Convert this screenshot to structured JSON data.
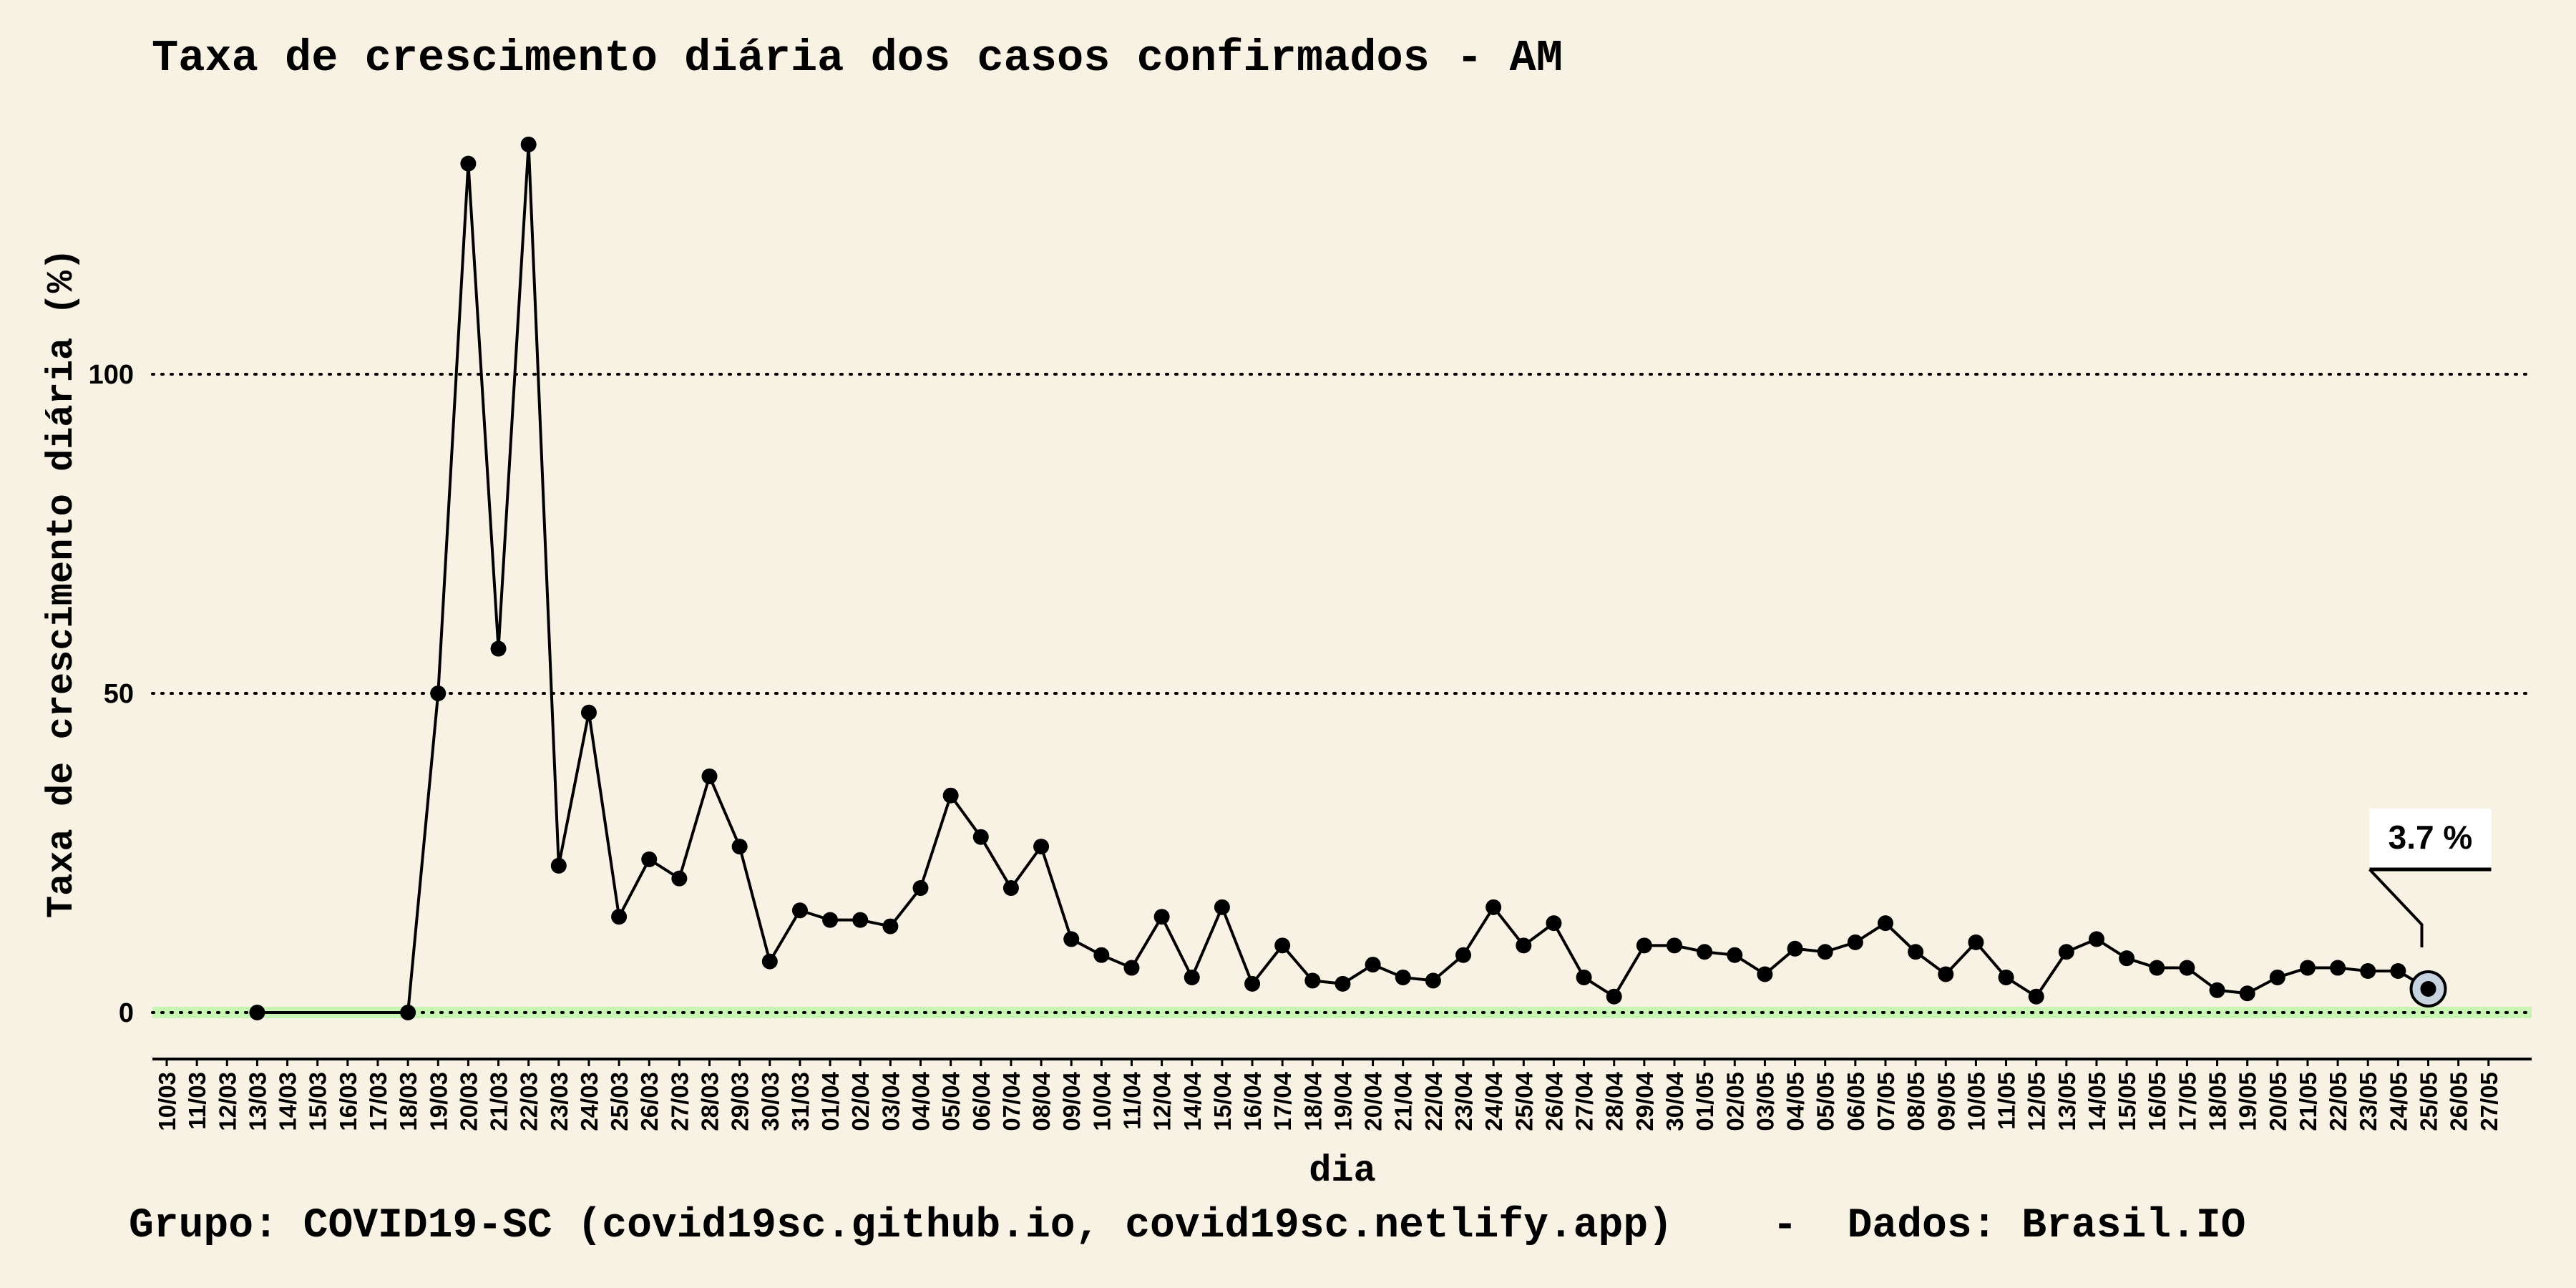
{
  "chart_data": {
    "type": "line",
    "title": "Taxa de crescimento diária dos casos confirmados - AM",
    "xlabel": "dia",
    "ylabel": "Taxa de crescimento diária (%)",
    "caption": "Grupo: COVID19-SC (covid19sc.github.io, covid19sc.netlify.app)    -  Dados: Brasil.IO",
    "x_axis_labels": [
      "10/03",
      "11/03",
      "12/03",
      "13/03",
      "14/03",
      "15/03",
      "16/03",
      "17/03",
      "18/03",
      "19/03",
      "20/03",
      "21/03",
      "22/03",
      "23/03",
      "24/03",
      "25/03",
      "26/03",
      "27/03",
      "28/03",
      "29/03",
      "30/03",
      "31/03",
      "01/04",
      "02/04",
      "03/04",
      "04/04",
      "05/04",
      "06/04",
      "07/04",
      "08/04",
      "09/04",
      "10/04",
      "11/04",
      "12/04",
      "14/04",
      "15/04",
      "16/04",
      "17/04",
      "18/04",
      "19/04",
      "20/04",
      "21/04",
      "22/04",
      "23/04",
      "24/04",
      "25/04",
      "26/04",
      "27/04",
      "28/04",
      "29/04",
      "30/04",
      "01/05",
      "02/05",
      "03/05",
      "04/05",
      "05/05",
      "06/05",
      "07/05",
      "08/05",
      "09/05",
      "10/05",
      "11/05",
      "12/05",
      "13/05",
      "14/05",
      "15/05",
      "16/05",
      "17/05",
      "18/05",
      "19/05",
      "20/05",
      "21/05",
      "22/05",
      "23/05",
      "24/05",
      "25/05",
      "26/05",
      "27/05"
    ],
    "yticks": [
      0,
      50,
      100
    ],
    "ylim": [
      -6,
      150
    ],
    "grid": "horizontal dotted",
    "series": [
      {
        "color": "#000000",
        "points": [
          {
            "x": "13/03",
            "y": 0
          },
          {
            "x": "18/03",
            "y": 0
          },
          {
            "x": "19/03",
            "y": 50
          },
          {
            "x": "20/03",
            "y": 133
          },
          {
            "x": "21/03",
            "y": 57
          },
          {
            "x": "22/03",
            "y": 136
          },
          {
            "x": "23/03",
            "y": 23
          },
          {
            "x": "24/03",
            "y": 47
          },
          {
            "x": "25/03",
            "y": 15
          },
          {
            "x": "26/03",
            "y": 24
          },
          {
            "x": "27/03",
            "y": 21
          },
          {
            "x": "28/03",
            "y": 37
          },
          {
            "x": "29/03",
            "y": 26
          },
          {
            "x": "30/03",
            "y": 8
          },
          {
            "x": "31/03",
            "y": 16
          },
          {
            "x": "01/04",
            "y": 14.5
          },
          {
            "x": "02/04",
            "y": 14.5
          },
          {
            "x": "03/04",
            "y": 13.5
          },
          {
            "x": "04/04",
            "y": 19.5
          },
          {
            "x": "05/04",
            "y": 34
          },
          {
            "x": "06/04",
            "y": 27.5
          },
          {
            "x": "07/04",
            "y": 19.5
          },
          {
            "x": "08/04",
            "y": 26
          },
          {
            "x": "09/04",
            "y": 11.5
          },
          {
            "x": "10/04",
            "y": 9
          },
          {
            "x": "11/04",
            "y": 7
          },
          {
            "x": "12/04",
            "y": 15
          },
          {
            "x": "14/04",
            "y": 5.5
          },
          {
            "x": "15/04",
            "y": 16.5
          },
          {
            "x": "16/04",
            "y": 4.5
          },
          {
            "x": "17/04",
            "y": 10.5
          },
          {
            "x": "18/04",
            "y": 5
          },
          {
            "x": "19/04",
            "y": 4.5
          },
          {
            "x": "20/04",
            "y": 7.5
          },
          {
            "x": "21/04",
            "y": 5.5
          },
          {
            "x": "22/04",
            "y": 5
          },
          {
            "x": "23/04",
            "y": 9
          },
          {
            "x": "24/04",
            "y": 16.5
          },
          {
            "x": "25/04",
            "y": 10.5
          },
          {
            "x": "26/04",
            "y": 14
          },
          {
            "x": "27/04",
            "y": 5.5
          },
          {
            "x": "28/04",
            "y": 2.5
          },
          {
            "x": "29/04",
            "y": 10.5
          },
          {
            "x": "30/04",
            "y": 10.5
          },
          {
            "x": "01/05",
            "y": 9.5
          },
          {
            "x": "02/05",
            "y": 9
          },
          {
            "x": "03/05",
            "y": 6
          },
          {
            "x": "04/05",
            "y": 10
          },
          {
            "x": "05/05",
            "y": 9.5
          },
          {
            "x": "06/05",
            "y": 11
          },
          {
            "x": "07/05",
            "y": 14
          },
          {
            "x": "08/05",
            "y": 9.5
          },
          {
            "x": "09/05",
            "y": 6
          },
          {
            "x": "10/05",
            "y": 11
          },
          {
            "x": "11/05",
            "y": 5.5
          },
          {
            "x": "12/05",
            "y": 2.5
          },
          {
            "x": "13/05",
            "y": 9.5
          },
          {
            "x": "14/05",
            "y": 11.5
          },
          {
            "x": "15/05",
            "y": 8.5
          },
          {
            "x": "16/05",
            "y": 7
          },
          {
            "x": "17/05",
            "y": 7
          },
          {
            "x": "18/05",
            "y": 3.5
          },
          {
            "x": "19/05",
            "y": 3
          },
          {
            "x": "20/05",
            "y": 5.5
          },
          {
            "x": "21/05",
            "y": 7
          },
          {
            "x": "22/05",
            "y": 7
          },
          {
            "x": "23/05",
            "y": 6.5
          },
          {
            "x": "24/05",
            "y": 6.5
          },
          {
            "x": "25/05",
            "y": 3.7
          }
        ]
      }
    ],
    "annotations": [
      {
        "x": "25/05",
        "y": 3.7,
        "text": "3.7 %",
        "highlight_color": "#c7d4df"
      }
    ],
    "reference_line": {
      "y": 0,
      "color": "#c8f5b4"
    },
    "colors": {
      "background": "#f8f2e5",
      "line": "#000000",
      "zero_band": "#c8f5b4",
      "highlight": "#c7d4df"
    }
  }
}
